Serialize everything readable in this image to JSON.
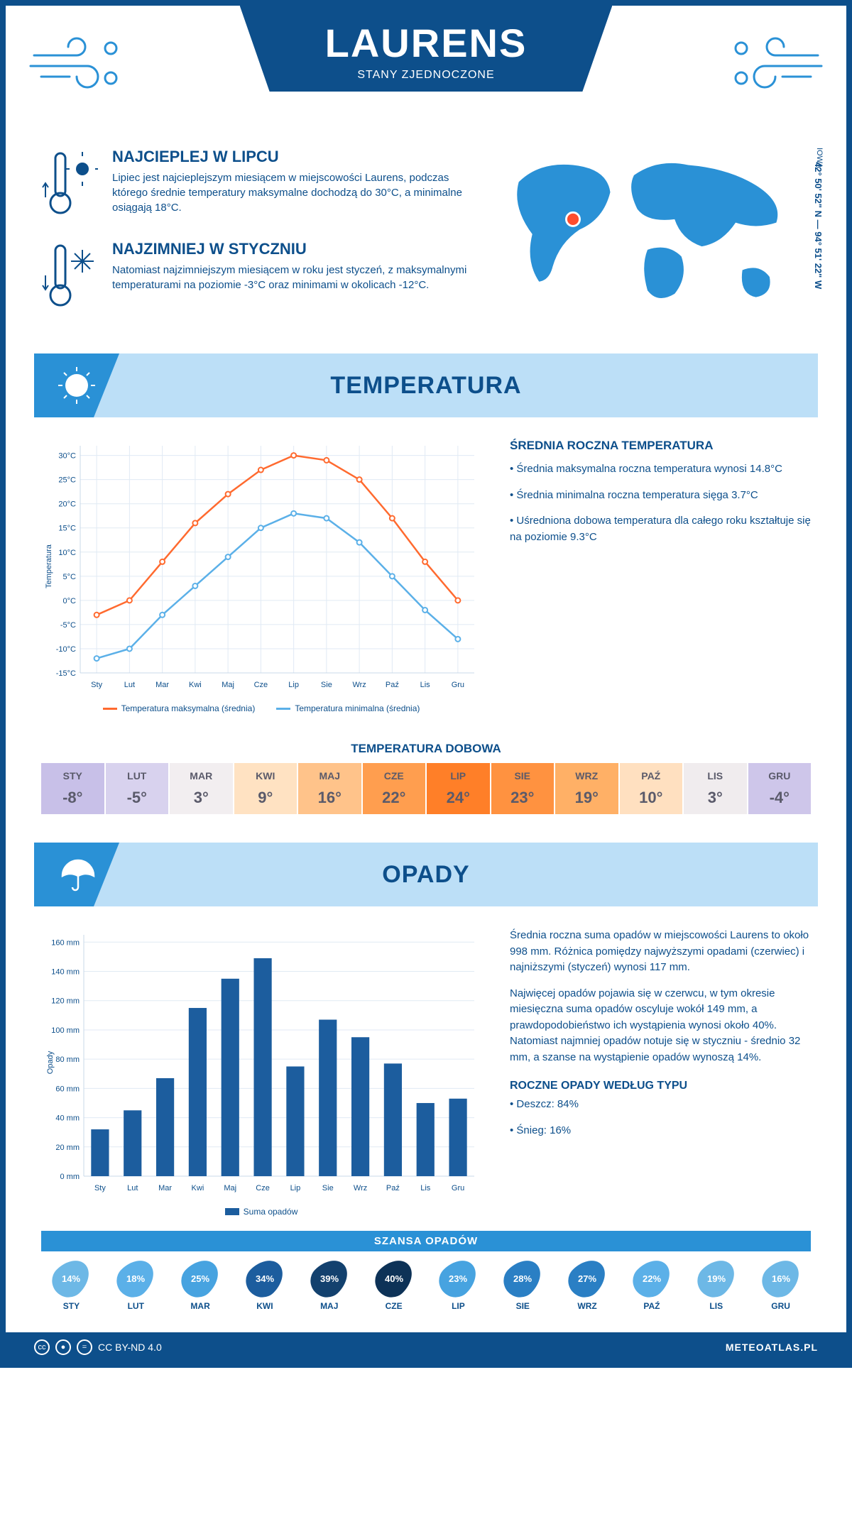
{
  "header": {
    "city": "LAURENS",
    "country": "STANY ZJEDNOCZONE",
    "coords": "42° 50' 52\" N — 94° 51' 22\" W",
    "state": "IOWA"
  },
  "facts": {
    "hot": {
      "title": "NAJCIEPLEJ W LIPCU",
      "text": "Lipiec jest najcieplejszym miesiącem w miejscowości Laurens, podczas którego średnie temperatury maksymalne dochodzą do 30°C, a minimalne osiągają 18°C."
    },
    "cold": {
      "title": "NAJZIMNIEJ W STYCZNIU",
      "text": "Natomiast najzimniejszym miesiącem w roku jest styczeń, z maksymalnymi temperaturami na poziomie -3°C oraz minimami w okolicach -12°C."
    }
  },
  "palette": {
    "primary": "#0d4f8b",
    "light": "#bcdff7",
    "mid": "#2a91d6",
    "grid": "#e0eaf4",
    "tmax_line": "#ff6a2f",
    "tmin_line": "#5bb0e8",
    "bar_fill": "#1c5d9e"
  },
  "months_short": [
    "Sty",
    "Lut",
    "Mar",
    "Kwi",
    "Maj",
    "Cze",
    "Lip",
    "Sie",
    "Wrz",
    "Paź",
    "Lis",
    "Gru"
  ],
  "months_upper": [
    "STY",
    "LUT",
    "MAR",
    "KWI",
    "MAJ",
    "CZE",
    "LIP",
    "SIE",
    "WRZ",
    "PAŹ",
    "LIS",
    "GRU"
  ],
  "temp_section": {
    "title": "TEMPERATURA",
    "chart": {
      "type": "line",
      "ylabel": "Temperatura",
      "y_ticks": [
        -15,
        -10,
        -5,
        0,
        5,
        10,
        15,
        20,
        25,
        30
      ],
      "y_tick_labels": [
        "-15°C",
        "-10°C",
        "-5°C",
        "0°C",
        "5°C",
        "10°C",
        "15°C",
        "20°C",
        "25°C",
        "30°C"
      ],
      "ylim": [
        -15,
        32
      ],
      "tmax": [
        -3,
        0,
        8,
        16,
        22,
        27,
        30,
        29,
        25,
        17,
        8,
        0
      ],
      "tmin": [
        -12,
        -10,
        -3,
        3,
        9,
        15,
        18,
        17,
        12,
        5,
        -2,
        -8
      ],
      "legend_max": "Temperatura maksymalna (średnia)",
      "legend_min": "Temperatura minimalna (średnia)"
    },
    "side": {
      "title": "ŚREDNIA ROCZNA TEMPERATURA",
      "b1": "• Średnia maksymalna roczna temperatura wynosi 14.8°C",
      "b2": "• Średnia minimalna roczna temperatura sięga 3.7°C",
      "b3": "• Uśredniona dobowa temperatura dla całego roku kształtuje się na poziomie 9.3°C"
    },
    "daily": {
      "title": "TEMPERATURA DOBOWA",
      "values": [
        "-8°",
        "-5°",
        "3°",
        "9°",
        "16°",
        "22°",
        "24°",
        "23°",
        "19°",
        "10°",
        "3°",
        "-4°"
      ],
      "colors": [
        "#c8c0e8",
        "#d8d2ee",
        "#f2eef0",
        "#ffe2c2",
        "#ffc38a",
        "#ff9e4f",
        "#ff7f28",
        "#ff9240",
        "#ffb066",
        "#ffe0c0",
        "#f0ecee",
        "#cec6ea"
      ]
    }
  },
  "precip_section": {
    "title": "OPADY",
    "chart": {
      "type": "bar",
      "ylabel": "Opady",
      "y_ticks": [
        0,
        20,
        40,
        60,
        80,
        100,
        120,
        140,
        160
      ],
      "y_tick_labels": [
        "0 mm",
        "20 mm",
        "40 mm",
        "60 mm",
        "80 mm",
        "100 mm",
        "120 mm",
        "140 mm",
        "160 mm"
      ],
      "ylim": [
        0,
        165
      ],
      "values": [
        32,
        45,
        67,
        115,
        135,
        149,
        75,
        107,
        95,
        77,
        50,
        53
      ],
      "legend": "Suma opadów"
    },
    "side": {
      "p1": "Średnia roczna suma opadów w miejscowości Laurens to około 998 mm. Różnica pomiędzy najwyższymi opadami (czerwiec) i najniższymi (styczeń) wynosi 117 mm.",
      "p2": "Najwięcej opadów pojawia się w czerwcu, w tym okresie miesięczna suma opadów oscyluje wokół 149 mm, a prawdopodobieństwo ich wystąpienia wynosi około 40%. Natomiast najmniej opadów notuje się w styczniu - średnio 32 mm, a szanse na wystąpienie opadów wynoszą 14%."
    },
    "chance": {
      "title": "SZANSA OPADÓW",
      "values": [
        "14%",
        "18%",
        "25%",
        "34%",
        "39%",
        "40%",
        "23%",
        "28%",
        "27%",
        "22%",
        "19%",
        "16%"
      ],
      "colors": [
        "#6db8e6",
        "#5bb0e8",
        "#47a3e0",
        "#1c5d9e",
        "#13416e",
        "#0d3257",
        "#47a3e0",
        "#2a7fc4",
        "#2a7fc4",
        "#5bb0e8",
        "#6db8e6",
        "#6db8e6"
      ]
    },
    "type": {
      "title": "ROCZNE OPADY WEDŁUG TYPU",
      "rain": "• Deszcz: 84%",
      "snow": "• Śnieg: 16%"
    }
  },
  "footer": {
    "license": "CC BY-ND 4.0",
    "brand": "METEOATLAS.PL"
  }
}
